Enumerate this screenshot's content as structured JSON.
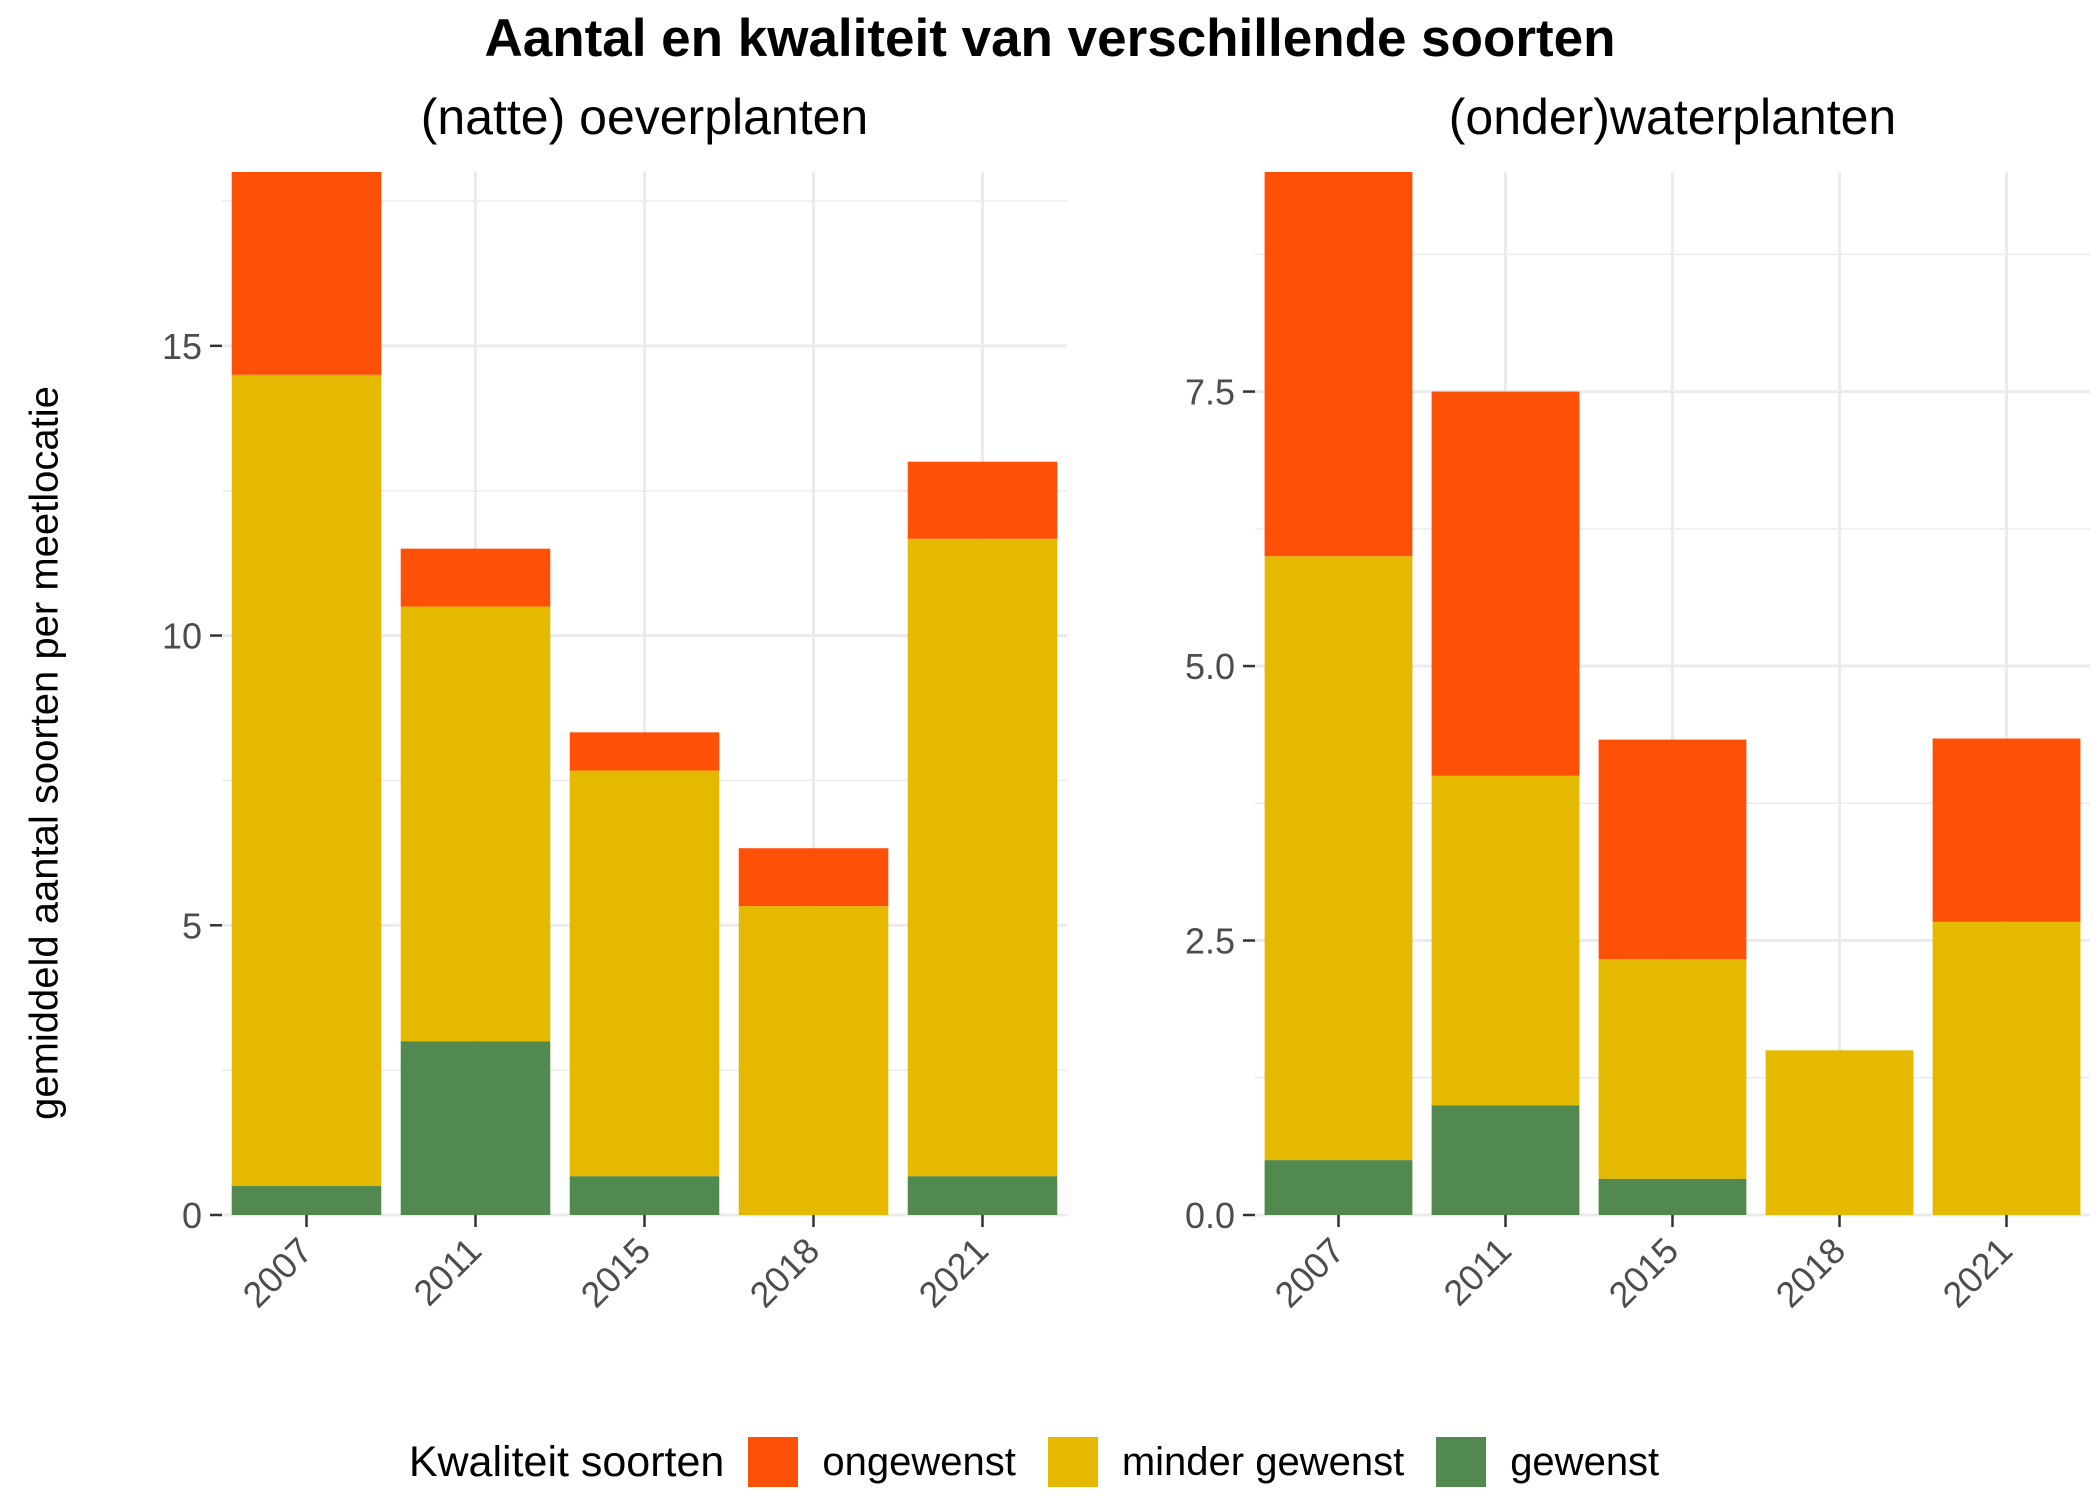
{
  "title": "Aantal en kwaliteit van verschillende soorten",
  "ylabel": "gemiddeld aantal soorten per meetlocatie",
  "legend": {
    "title": "Kwaliteit soorten",
    "items": [
      {
        "label": "ongewenst",
        "color": "#FF5008"
      },
      {
        "label": "minder gewenst",
        "color": "#E5B900"
      },
      {
        "label": "gewenst",
        "color": "#52894F"
      }
    ]
  },
  "chart_data": [
    {
      "type": "bar",
      "stacked": true,
      "title": "(natte) oeverplanten",
      "categories": [
        "2007",
        "2011",
        "2015",
        "2018",
        "2021"
      ],
      "yticks": [
        0,
        5,
        10,
        15
      ],
      "ytick_labels": [
        "0",
        "5",
        "10",
        "15"
      ],
      "ylim": [
        0,
        18
      ],
      "series": [
        {
          "name": "gewenst",
          "color": "#52894F",
          "values": [
            0.5,
            3.0,
            0.67,
            0,
            0.67
          ]
        },
        {
          "name": "minder gewenst",
          "color": "#E5B900",
          "values": [
            14.0,
            7.5,
            7.0,
            5.33,
            11.0
          ]
        },
        {
          "name": "ongewenst",
          "color": "#FF5008",
          "values": [
            3.5,
            1.0,
            0.66,
            1.0,
            1.33
          ]
        }
      ]
    },
    {
      "type": "bar",
      "stacked": true,
      "title": "(onder)waterplanten",
      "categories": [
        "2007",
        "2011",
        "2015",
        "2018",
        "2021"
      ],
      "yticks": [
        0,
        2.5,
        5,
        7.5
      ],
      "ytick_labels": [
        "0.0",
        "2.5",
        "5.0",
        "7.5"
      ],
      "ylim": [
        0,
        9.5
      ],
      "series": [
        {
          "name": "gewenst",
          "color": "#52894F",
          "values": [
            0.5,
            1.0,
            0.33,
            0,
            0
          ]
        },
        {
          "name": "minder gewenst",
          "color": "#E5B900",
          "values": [
            5.5,
            3.0,
            2.0,
            1.5,
            2.67
          ]
        },
        {
          "name": "ongewenst",
          "color": "#FF5008",
          "values": [
            3.5,
            3.5,
            2.0,
            0,
            1.67
          ]
        }
      ]
    }
  ]
}
